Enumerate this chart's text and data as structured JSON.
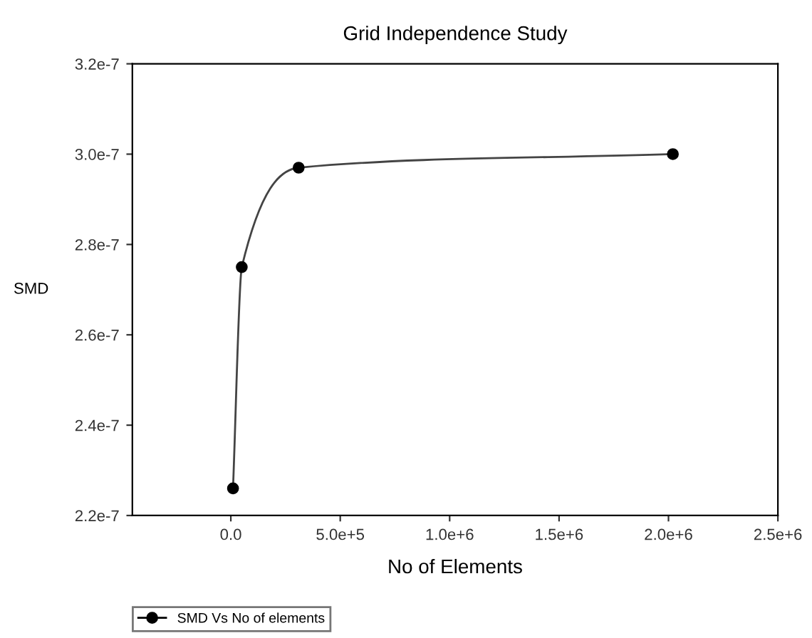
{
  "chart_data": {
    "type": "line",
    "title": "Grid Independence Study",
    "xlabel": "No of Elements",
    "ylabel": "SMD",
    "series": [
      {
        "name": "SMD Vs No of elements",
        "color": "#000000",
        "x": [
          10000,
          50000,
          310000,
          2020000
        ],
        "values": [
          2.26e-07,
          2.75e-07,
          2.97e-07,
          3e-07
        ]
      }
    ],
    "xlim": [
      -450000,
      2500000
    ],
    "xticks": [
      {
        "value": 0,
        "label": "0.0"
      },
      {
        "value": 500000,
        "label": "5.0e+5"
      },
      {
        "value": 1000000,
        "label": "1.0e+6"
      },
      {
        "value": 1500000,
        "label": "1.5e+6"
      },
      {
        "value": 2000000,
        "label": "2.0e+6"
      },
      {
        "value": 2500000,
        "label": "2.5e+6"
      }
    ],
    "ylim": [
      2.2e-07,
      3.2e-07
    ],
    "yticks": [
      {
        "value": 2.2e-07,
        "label": "2.2e-7"
      },
      {
        "value": 2.4e-07,
        "label": "2.4e-7"
      },
      {
        "value": 2.6e-07,
        "label": "2.6e-7"
      },
      {
        "value": 2.8e-07,
        "label": "2.8e-7"
      },
      {
        "value": 3e-07,
        "label": "3.0e-7"
      },
      {
        "value": 3.2e-07,
        "label": "3.2e-7"
      }
    ],
    "marker": "circle",
    "line_style": "solid",
    "grid": false,
    "legend": "bottom left"
  }
}
